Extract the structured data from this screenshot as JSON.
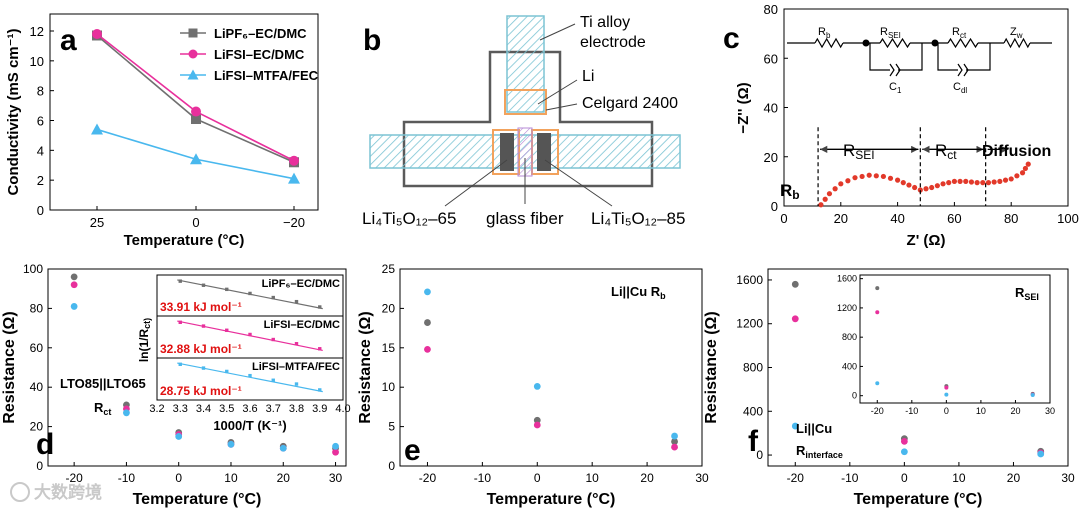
{
  "figure_title": "Electrolyte conductivity, cell schematic, impedance model and interfacial resistances",
  "colors": {
    "gray": "#707070",
    "pink": "#e8309c",
    "blue": "#49b8ee",
    "red": "#e2392a",
    "orange": "#f2a25c",
    "hatch": "#7cc4d4",
    "inset_red_text": "#e01010"
  },
  "panels": {
    "a": {
      "letter": "a"
    },
    "b": {
      "letter": "b",
      "labels": {
        "electrode": "Ti alloy\nelectrode",
        "li": "Li",
        "separator": "Celgard 2400",
        "left": "Li₄Ti₅O₁₂–65",
        "middle": "glass fiber",
        "right": "Li₄Ti₅O₁₂–85"
      }
    },
    "c": {
      "letter": "c",
      "circuit": {
        "rb": "Rb",
        "rsei": "RSEI",
        "rct": "Rct",
        "zw": "Zw",
        "c1": "C1",
        "cdl": "Cdl"
      },
      "annotations": {
        "rb": "Rb",
        "rsei": "RSEI",
        "rct": "Rct",
        "diffusion": "Diffusion"
      }
    },
    "d": {
      "letter": "d",
      "annotation_line1": "LTO85||LTO65",
      "annotation_line2": "Rct",
      "inset": {
        "xlabel": "1000/T (K⁻¹)",
        "ylabel": "ln(1/Rct)",
        "xticks": [
          "3.2",
          "3.3",
          "3.4",
          "3.5",
          "3.6",
          "3.7",
          "3.8",
          "3.9",
          "4.0"
        ],
        "rows": [
          {
            "name": "LiPF₆–EC/DMC",
            "energy": "33.91 kJ mol⁻¹",
            "color": "#707070"
          },
          {
            "name": "LiFSI–EC/DMC",
            "energy": "32.88 kJ mol⁻¹",
            "color": "#e8309c"
          },
          {
            "name": "LiFSI–MTFA/FEC",
            "energy": "28.75 kJ mol⁻¹",
            "color": "#49b8ee"
          }
        ]
      }
    },
    "e": {
      "letter": "e",
      "annotation": "Li||Cu  Rb"
    },
    "f": {
      "letter": "f",
      "annotation_line1": "Li||Cu",
      "annotation_line2": "Rinterface",
      "inset_label": "RSEI"
    }
  },
  "watermark": "大数跨境",
  "chart_data": [
    {
      "id": "a",
      "type": "line",
      "title": "",
      "xlabel": "Temperature (°C)",
      "ylabel": "Conductivity (mS cm⁻¹)",
      "categories": [
        "25",
        "0",
        "−20"
      ],
      "ylim": [
        0,
        12
      ],
      "yticks": [
        0,
        2,
        4,
        6,
        8,
        10,
        12
      ],
      "legend_position": "top-right",
      "series": [
        {
          "name": "LiPF₆–EC/DMC",
          "marker": "square",
          "color": "#707070",
          "values": [
            11.7,
            6.1,
            3.2
          ]
        },
        {
          "name": "LiFSI–EC/DMC",
          "marker": "circle",
          "color": "#e8309c",
          "values": [
            11.8,
            6.6,
            3.3
          ]
        },
        {
          "name": "LiFSI–MTFA/FEC",
          "marker": "triangle",
          "color": "#49b8ee",
          "values": [
            5.4,
            3.4,
            2.1
          ]
        }
      ]
    },
    {
      "id": "c",
      "type": "line",
      "title": "",
      "xlabel": "Z' (Ω)",
      "ylabel": "−Z'' (Ω)",
      "xlim": [
        0,
        100
      ],
      "ylim": [
        0,
        80
      ],
      "xticks": [
        0,
        20,
        40,
        60,
        80,
        100
      ],
      "yticks": [
        0,
        20,
        40,
        60,
        80
      ],
      "series": [
        {
          "name": "Nyquist plot",
          "color": "#e2392a",
          "x": [
            13,
            16,
            20,
            25,
            30,
            35,
            40,
            44,
            48,
            52,
            56,
            60,
            64,
            68,
            72,
            76,
            80,
            84,
            86
          ],
          "y": [
            0.5,
            5,
            9,
            11.5,
            12.5,
            12,
            10.5,
            8.5,
            6.5,
            7.5,
            9,
            10,
            10,
            9.5,
            9.5,
            10,
            11,
            13.5,
            17
          ]
        }
      ],
      "markers_x": [
        12,
        48,
        71
      ]
    },
    {
      "id": "d",
      "type": "scatter",
      "title": "",
      "xlabel": "Temperature (°C)",
      "ylabel": "Resistance (Ω)",
      "xlim": [
        -25,
        32
      ],
      "ylim": [
        0,
        100
      ],
      "xticks": [
        -20,
        -10,
        0,
        10,
        20,
        30
      ],
      "yticks": [
        0,
        20,
        40,
        60,
        80,
        100
      ],
      "series": [
        {
          "name": "LiPF₆–EC/DMC",
          "color": "#707070",
          "x": [
            -20,
            -10,
            0,
            10,
            20,
            30
          ],
          "y": [
            96,
            31,
            17,
            12,
            10,
            9
          ]
        },
        {
          "name": "LiFSI–EC/DMC",
          "color": "#e8309c",
          "x": [
            -20,
            -10,
            0,
            10,
            20,
            30
          ],
          "y": [
            92,
            29,
            16,
            11,
            9,
            7
          ]
        },
        {
          "name": "LiFSI–MTFA/FEC",
          "color": "#49b8ee",
          "x": [
            -20,
            -10,
            0,
            10,
            20,
            30
          ],
          "y": [
            81,
            27,
            15,
            11,
            9,
            10
          ]
        }
      ],
      "inset": {
        "type": "scatter",
        "xlim": [
          3.2,
          4.0
        ],
        "x": [
          3.3,
          3.4,
          3.5,
          3.6,
          3.7,
          3.8,
          3.9
        ],
        "series_fraction_y": [
          [
            0.85,
            0.75,
            0.65,
            0.55,
            0.45,
            0.35,
            0.22
          ],
          [
            0.85,
            0.76,
            0.66,
            0.56,
            0.44,
            0.34,
            0.22
          ],
          [
            0.85,
            0.76,
            0.68,
            0.58,
            0.47,
            0.38,
            0.24
          ]
        ]
      }
    },
    {
      "id": "e",
      "type": "scatter",
      "title": "",
      "xlabel": "Temperature (°C)",
      "ylabel": "Resistance (Ω)",
      "xlim": [
        -25,
        30
      ],
      "ylim": [
        0,
        25
      ],
      "xticks": [
        -20,
        -10,
        0,
        10,
        20,
        30
      ],
      "yticks": [
        0,
        5,
        10,
        15,
        20,
        25
      ],
      "series": [
        {
          "name": "LiPF₆–EC/DMC",
          "color": "#707070",
          "x": [
            -20,
            0,
            25
          ],
          "y": [
            18.2,
            5.8,
            3.1
          ]
        },
        {
          "name": "LiFSI–EC/DMC",
          "color": "#e8309c",
          "x": [
            -20,
            0,
            25
          ],
          "y": [
            14.8,
            5.2,
            2.4
          ]
        },
        {
          "name": "LiFSI–MTFA/FEC",
          "color": "#49b8ee",
          "x": [
            -20,
            0,
            25
          ],
          "y": [
            22.1,
            10.1,
            3.8
          ]
        }
      ]
    },
    {
      "id": "f",
      "type": "scatter",
      "title": "",
      "xlabel": "Temperature (°C)",
      "ylabel": "Resistance (Ω)",
      "xlim": [
        -25,
        30
      ],
      "ylim": [
        -100,
        1700
      ],
      "xticks": [
        -20,
        -10,
        0,
        10,
        20,
        30
      ],
      "yticks": [
        0,
        400,
        800,
        1200,
        1600
      ],
      "series": [
        {
          "name": "LiPF₆–EC/DMC",
          "color": "#707070",
          "x": [
            -20,
            0,
            25
          ],
          "y": [
            1560,
            150,
            35
          ]
        },
        {
          "name": "LiFSI–EC/DMC",
          "color": "#e8309c",
          "x": [
            -20,
            0,
            25
          ],
          "y": [
            1245,
            125,
            20
          ]
        },
        {
          "name": "LiFSI–MTFA/FEC",
          "color": "#49b8ee",
          "x": [
            -20,
            0,
            25
          ],
          "y": [
            265,
            30,
            10
          ]
        }
      ],
      "inset": {
        "type": "scatter",
        "xlim": [
          -25,
          30
        ],
        "ylim": [
          -100,
          1650
        ],
        "xticks": [
          -20,
          -10,
          0,
          10,
          20,
          30
        ],
        "yticks": [
          0,
          400,
          800,
          1200,
          1600
        ],
        "series": [
          {
            "name": "LiPF₆–EC/DMC",
            "color": "#707070",
            "x": [
              -20,
              0,
              25
            ],
            "y": [
              1470,
              130,
              25
            ]
          },
          {
            "name": "LiFSI–EC/DMC",
            "color": "#e8309c",
            "x": [
              -20,
              0,
              25
            ],
            "y": [
              1140,
              110,
              15
            ]
          },
          {
            "name": "LiFSI–MTFA/FEC",
            "color": "#49b8ee",
            "x": [
              -20,
              0,
              25
            ],
            "y": [
              170,
              15,
              10
            ]
          }
        ]
      }
    }
  ]
}
